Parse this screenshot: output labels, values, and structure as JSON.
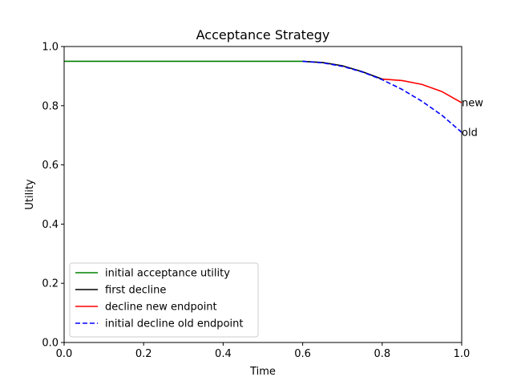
{
  "chart_data": {
    "type": "line",
    "title": "Acceptance Strategy",
    "xlabel": "Time",
    "ylabel": "Utility",
    "xlim": [
      0.0,
      1.0
    ],
    "ylim": [
      0.0,
      1.0
    ],
    "xticks": [
      "0.0",
      "0.2",
      "0.4",
      "0.6",
      "0.8",
      "1.0"
    ],
    "yticks": [
      "0.0",
      "0.2",
      "0.4",
      "0.6",
      "0.8",
      "1.0"
    ],
    "grid": false,
    "legend_position": "lower-left",
    "series": [
      {
        "name": "initial acceptance utility",
        "color": "#008000",
        "dash": "solid",
        "points": [
          [
            0.0,
            0.95
          ],
          [
            0.6,
            0.95
          ]
        ]
      },
      {
        "name": "first decline",
        "color": "#000000",
        "dash": "solid",
        "points": [
          [
            0.6,
            0.95
          ],
          [
            0.65,
            0.946
          ],
          [
            0.7,
            0.935
          ],
          [
            0.75,
            0.915
          ],
          [
            0.8,
            0.89
          ]
        ]
      },
      {
        "name": "decline new endpoint",
        "color": "#ff0000",
        "dash": "solid",
        "points": [
          [
            0.8,
            0.89
          ],
          [
            0.85,
            0.885
          ],
          [
            0.9,
            0.872
          ],
          [
            0.95,
            0.848
          ],
          [
            1.0,
            0.81
          ]
        ]
      },
      {
        "name": "initial decline old endpoint",
        "color": "#0000ff",
        "dash": "dashed",
        "points": [
          [
            0.6,
            0.95
          ],
          [
            0.65,
            0.945
          ],
          [
            0.7,
            0.933
          ],
          [
            0.75,
            0.914
          ],
          [
            0.8,
            0.888
          ],
          [
            0.85,
            0.855
          ],
          [
            0.9,
            0.815
          ],
          [
            0.95,
            0.768
          ],
          [
            1.0,
            0.71
          ]
        ]
      }
    ],
    "annotations": [
      {
        "text": "new",
        "x": 1.0,
        "y": 0.81
      },
      {
        "text": "old",
        "x": 1.0,
        "y": 0.71
      }
    ]
  }
}
